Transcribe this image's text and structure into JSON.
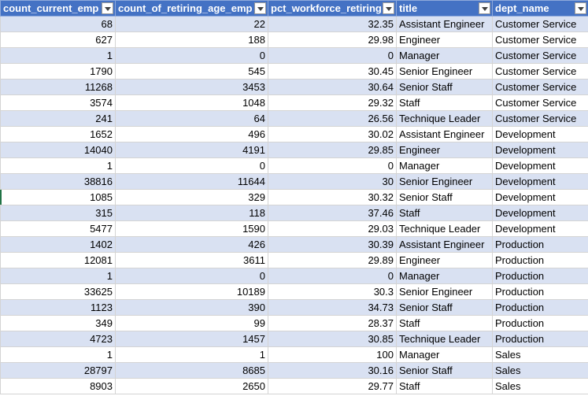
{
  "columns": [
    {
      "key": "count_current_emp",
      "label": "count_current_emp",
      "type": "num"
    },
    {
      "key": "count_of_retiring_age_emp",
      "label": "count_of_retiring_age_emp",
      "type": "num"
    },
    {
      "key": "pct_workforce_retiring",
      "label": "pct_workforce_retiring",
      "type": "num"
    },
    {
      "key": "title",
      "label": "title",
      "type": "txt"
    },
    {
      "key": "dept_name",
      "label": "dept_name",
      "type": "txt"
    }
  ],
  "rows": [
    [
      "68",
      "22",
      "32.35",
      "Assistant Engineer",
      "Customer Service"
    ],
    [
      "627",
      "188",
      "29.98",
      "Engineer",
      "Customer Service"
    ],
    [
      "1",
      "0",
      "0",
      "Manager",
      "Customer Service"
    ],
    [
      "1790",
      "545",
      "30.45",
      "Senior Engineer",
      "Customer Service"
    ],
    [
      "11268",
      "3453",
      "30.64",
      "Senior Staff",
      "Customer Service"
    ],
    [
      "3574",
      "1048",
      "29.32",
      "Staff",
      "Customer Service"
    ],
    [
      "241",
      "64",
      "26.56",
      "Technique Leader",
      "Customer Service"
    ],
    [
      "1652",
      "496",
      "30.02",
      "Assistant Engineer",
      "Development"
    ],
    [
      "14040",
      "4191",
      "29.85",
      "Engineer",
      "Development"
    ],
    [
      "1",
      "0",
      "0",
      "Manager",
      "Development"
    ],
    [
      "38816",
      "11644",
      "30",
      "Senior Engineer",
      "Development"
    ],
    [
      "1085",
      "329",
      "30.32",
      "Senior Staff",
      "Development"
    ],
    [
      "315",
      "118",
      "37.46",
      "Staff",
      "Development"
    ],
    [
      "5477",
      "1590",
      "29.03",
      "Technique Leader",
      "Development"
    ],
    [
      "1402",
      "426",
      "30.39",
      "Assistant Engineer",
      "Production"
    ],
    [
      "12081",
      "3611",
      "29.89",
      "Engineer",
      "Production"
    ],
    [
      "1",
      "0",
      "0",
      "Manager",
      "Production"
    ],
    [
      "33625",
      "10189",
      "30.3",
      "Senior Engineer",
      "Production"
    ],
    [
      "1123",
      "390",
      "34.73",
      "Senior Staff",
      "Production"
    ],
    [
      "349",
      "99",
      "28.37",
      "Staff",
      "Production"
    ],
    [
      "4723",
      "1457",
      "30.85",
      "Technique Leader",
      "Production"
    ],
    [
      "1",
      "1",
      "100",
      "Manager",
      "Sales"
    ],
    [
      "28797",
      "8685",
      "30.16",
      "Senior Staff",
      "Sales"
    ],
    [
      "8903",
      "2650",
      "29.77",
      "Staff",
      "Sales"
    ]
  ],
  "colors": {
    "header_bg": "#4472c4",
    "band_bg": "#d9e1f2",
    "grid": "#d4d4d4",
    "active_marker": "#217346"
  },
  "icons": {
    "filter": "filter-dropdown-icon"
  }
}
